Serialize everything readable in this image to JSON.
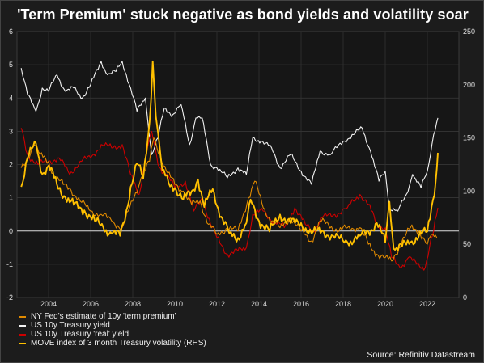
{
  "title": "'Term Premium' stuck negative as bond yields and volatility soar",
  "source": "Source: Refinitiv Datastream",
  "chart_data": {
    "type": "line",
    "title": "'Term Premium' stuck negative as bond yields and volatility soar",
    "x_ticks": [
      "2004",
      "2006",
      "2008",
      "2010",
      "2012",
      "2014",
      "2016",
      "2018",
      "2020",
      "2022"
    ],
    "x_range": [
      2002.5,
      2023.5
    ],
    "y_left_range": [
      -2,
      6
    ],
    "y_left_ticks": [
      "-2",
      "-1",
      "0",
      "1",
      "2",
      "3",
      "4",
      "5",
      "6"
    ],
    "y_right_range": [
      0,
      250
    ],
    "y_right_ticks": [
      "0",
      "50",
      "100",
      "150",
      "200",
      "250"
    ],
    "grid": true,
    "legend_position": "bottom-left",
    "series": [
      {
        "name": "NY Fed's estimate of 10y 'term premium'",
        "color": "#e08a00",
        "axis": "left",
        "x": [
          2002.7,
          2003.0,
          2003.3,
          2003.6,
          2004.0,
          2004.3,
          2004.7,
          2005.0,
          2005.5,
          2006.0,
          2006.5,
          2007.0,
          2007.5,
          2008.0,
          2008.4,
          2008.8,
          2009.0,
          2009.3,
          2009.6,
          2010.0,
          2010.4,
          2010.8,
          2011.2,
          2011.6,
          2012.0,
          2012.5,
          2013.0,
          2013.5,
          2013.8,
          2014.2,
          2014.6,
          2015.0,
          2015.5,
          2016.0,
          2016.5,
          2016.9,
          2017.3,
          2017.8,
          2018.2,
          2018.8,
          2019.2,
          2019.6,
          2020.0,
          2020.3,
          2020.5,
          2020.8,
          2021.2,
          2021.6,
          2022.0,
          2022.2,
          2022.45
        ],
        "y": [
          1.9,
          2.2,
          2.6,
          2.3,
          2.1,
          1.6,
          1.4,
          1.3,
          0.9,
          0.6,
          0.5,
          0.3,
          0.1,
          0.9,
          1.6,
          2.1,
          2.8,
          2.3,
          1.8,
          1.4,
          1.2,
          0.8,
          0.9,
          0.2,
          -0.1,
          0.1,
          0.0,
          1.0,
          1.5,
          0.7,
          0.3,
          0.1,
          0.4,
          0.0,
          -0.3,
          0.3,
          0.2,
          0.0,
          0.1,
          0.1,
          -0.4,
          -0.7,
          -0.8,
          -0.9,
          -0.7,
          -0.3,
          0.1,
          0.0,
          -0.4,
          -0.1,
          -0.2
        ]
      },
      {
        "name": "US 10y Treasury yield",
        "color": "#f2f2f2",
        "axis": "left",
        "x": [
          2002.7,
          2003.0,
          2003.4,
          2003.7,
          2004.0,
          2004.4,
          2004.8,
          2005.2,
          2005.6,
          2006.0,
          2006.5,
          2006.8,
          2007.2,
          2007.5,
          2007.9,
          2008.2,
          2008.6,
          2008.9,
          2009.2,
          2009.5,
          2009.9,
          2010.3,
          2010.7,
          2011.0,
          2011.3,
          2011.7,
          2012.0,
          2012.5,
          2013.0,
          2013.4,
          2013.7,
          2014.1,
          2014.6,
          2015.0,
          2015.5,
          2016.0,
          2016.5,
          2016.9,
          2017.4,
          2018.0,
          2018.5,
          2018.9,
          2019.3,
          2019.7,
          2020.0,
          2020.2,
          2020.6,
          2021.0,
          2021.3,
          2021.7,
          2022.0,
          2022.3,
          2022.5
        ],
        "y": [
          4.9,
          4.1,
          3.6,
          4.3,
          4.2,
          4.7,
          4.2,
          4.3,
          4.0,
          4.4,
          5.1,
          4.7,
          4.8,
          5.1,
          4.3,
          3.6,
          4.0,
          2.3,
          2.8,
          3.7,
          3.5,
          3.8,
          2.6,
          3.4,
          3.4,
          2.0,
          1.9,
          1.6,
          1.9,
          1.7,
          2.8,
          2.7,
          2.5,
          1.9,
          2.3,
          1.8,
          1.4,
          2.4,
          2.3,
          2.7,
          2.9,
          3.1,
          2.4,
          1.5,
          1.8,
          0.7,
          0.6,
          1.1,
          1.7,
          1.3,
          1.8,
          2.9,
          3.4
        ]
      },
      {
        "name": "US 10y Treasury 'real' yield",
        "color": "#cc0000",
        "axis": "left",
        "x": [
          2002.7,
          2003.0,
          2003.5,
          2004.0,
          2004.5,
          2005.0,
          2005.5,
          2006.0,
          2006.5,
          2007.0,
          2007.5,
          2007.9,
          2008.3,
          2008.7,
          2008.9,
          2009.2,
          2009.6,
          2010.0,
          2010.5,
          2010.9,
          2011.3,
          2011.7,
          2012.0,
          2012.5,
          2013.0,
          2013.4,
          2013.7,
          2014.2,
          2014.7,
          2015.2,
          2015.7,
          2016.2,
          2016.6,
          2017.0,
          2017.6,
          2018.2,
          2018.8,
          2019.2,
          2019.6,
          2020.0,
          2020.3,
          2020.7,
          2021.1,
          2021.5,
          2021.9,
          2022.1,
          2022.3,
          2022.5
        ],
        "y": [
          3.1,
          2.3,
          2.0,
          2.1,
          2.2,
          1.7,
          2.1,
          2.2,
          2.6,
          2.5,
          2.6,
          1.7,
          1.1,
          2.5,
          3.0,
          2.0,
          1.7,
          1.3,
          1.5,
          0.6,
          1.0,
          0.2,
          -0.2,
          -0.7,
          -0.6,
          -0.5,
          0.5,
          0.6,
          0.3,
          0.1,
          0.7,
          0.2,
          0.0,
          0.4,
          0.5,
          0.7,
          1.1,
          0.8,
          0.2,
          0.1,
          -0.8,
          -1.1,
          -0.8,
          -1.0,
          -1.1,
          -0.5,
          0.0,
          0.7
        ]
      },
      {
        "name": "MOVE index of 3 month Treasury volatility (RHS)",
        "color": "#ffc000",
        "axis": "right",
        "x": [
          2002.7,
          2003.0,
          2003.4,
          2003.7,
          2004.0,
          2004.4,
          2004.8,
          2005.2,
          2005.7,
          2006.2,
          2006.6,
          2007.0,
          2007.4,
          2007.7,
          2007.9,
          2008.2,
          2008.5,
          2008.8,
          2008.95,
          2009.1,
          2009.4,
          2009.7,
          2010.0,
          2010.4,
          2010.8,
          2011.1,
          2011.4,
          2011.8,
          2012.2,
          2012.6,
          2013.0,
          2013.4,
          2013.6,
          2014.0,
          2014.5,
          2015.0,
          2015.5,
          2016.0,
          2016.5,
          2017.0,
          2017.6,
          2018.2,
          2018.8,
          2019.2,
          2019.6,
          2020.0,
          2020.2,
          2020.4,
          2020.8,
          2021.2,
          2021.6,
          2022.0,
          2022.2,
          2022.4,
          2022.5
        ],
        "y": [
          104,
          131,
          145,
          116,
          124,
          106,
          94,
          87,
          82,
          72,
          66,
          60,
          58,
          82,
          104,
          126,
          112,
          165,
          222,
          170,
          120,
          108,
          103,
          92,
          100,
          111,
          85,
          102,
          76,
          60,
          56,
          70,
          92,
          72,
          62,
          78,
          70,
          70,
          60,
          63,
          56,
          52,
          58,
          62,
          70,
          52,
          90,
          46,
          48,
          52,
          58,
          62,
          85,
          110,
          136
        ]
      }
    ]
  }
}
